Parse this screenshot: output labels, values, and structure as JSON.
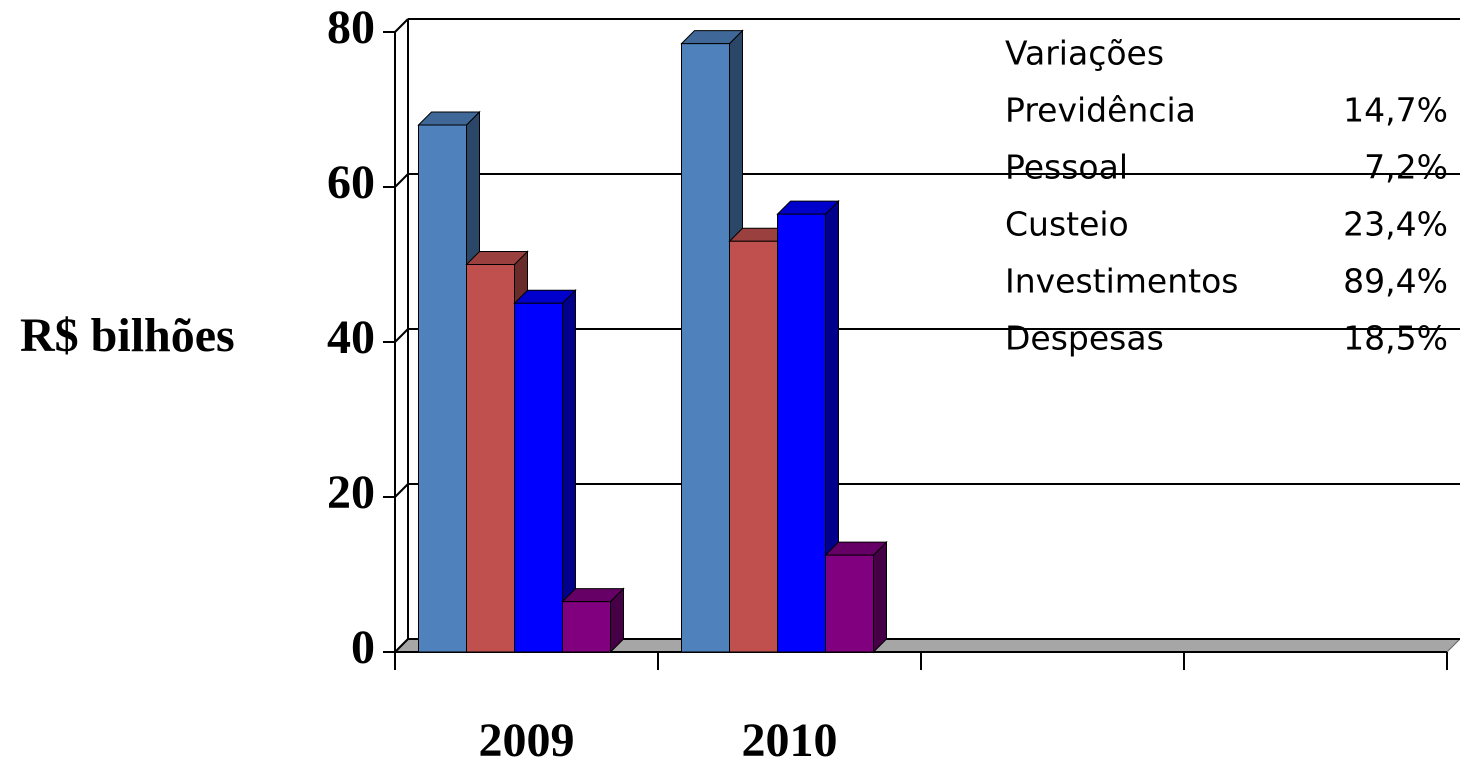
{
  "chart_data": {
    "type": "bar3d",
    "y_label": "R$ bilhões",
    "categories": [
      "2009",
      "2010",
      null,
      null
    ],
    "series": [
      {
        "color": "#4f81bd",
        "values": [
          68,
          78.5,
          null,
          null
        ]
      },
      {
        "color": "#c0504d",
        "values": [
          50,
          53,
          null,
          null
        ]
      },
      {
        "color": "#0000ff",
        "values": [
          45,
          56.5,
          null,
          null
        ]
      },
      {
        "color": "#800080",
        "values": [
          6.5,
          12.5,
          null,
          null
        ]
      }
    ],
    "ylim": [
      0,
      80
    ],
    "yticks": [
      0,
      20,
      40,
      60,
      80
    ],
    "grid": true,
    "annotation": {
      "title": "Variações",
      "rows": [
        [
          "Previdência",
          "14,7%"
        ],
        [
          "Pessoal",
          "7,2%"
        ],
        [
          "Custeio",
          "23,4%"
        ],
        [
          "Investimentos",
          "89,4%"
        ],
        [
          "Despesas",
          "18,5%"
        ]
      ]
    }
  }
}
